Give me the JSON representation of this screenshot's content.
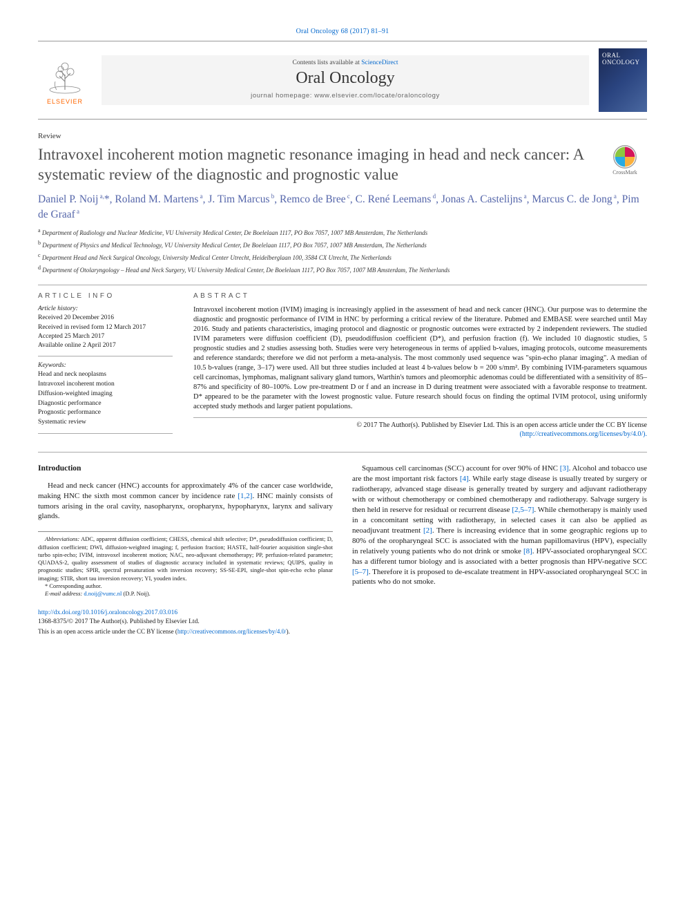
{
  "colors": {
    "link": "#0066cc",
    "author": "#5566aa",
    "title_gray": "#505050",
    "elsevier_orange": "#ff6600",
    "rule": "#999999",
    "bg_masthead": "#f4f4f4"
  },
  "citation": "Oral Oncology 68 (2017) 81–91",
  "masthead": {
    "contents_prefix": "Contents lists available at ",
    "contents_link": "ScienceDirect",
    "journal": "Oral Oncology",
    "homepage": "journal homepage: www.elsevier.com/locate/oraloncology",
    "publisher": "ELSEVIER",
    "cover_text": "ORAL ONCOLOGY"
  },
  "article": {
    "type": "Review",
    "title": "Intravoxel incoherent motion magnetic resonance imaging in head and neck cancer: A systematic review of the diagnostic and prognostic value",
    "crossmark": "CrossMark"
  },
  "authors_html": "Daniel P. Noij<sup> a,</sup>*, Roland M. Martens<sup> a</sup>, J. Tim Marcus<sup> b</sup>, Remco de Bree<sup> c</sup>, C. René Leemans<sup> d</sup>, Jonas A. Castelijns<sup> a</sup>, Marcus C. de Jong<sup> a</sup>, Pim de Graaf<sup> a</sup>",
  "affiliations": [
    "a|Department of Radiology and Nuclear Medicine, VU University Medical Center, De Boelelaan 1117, PO Box 7057, 1007 MB Amsterdam, The Netherlands",
    "b|Department of Physics and Medical Technology, VU University Medical Center, De Boelelaan 1117, PO Box 7057, 1007 MB Amsterdam, The Netherlands",
    "c|Department Head and Neck Surgical Oncology, University Medical Center Utrecht, Heidelberglaan 100, 3584 CX Utrecht, The Netherlands",
    "d|Department of Otolaryngology – Head and Neck Surgery, VU University Medical Center, De Boelelaan 1117, PO Box 7057, 1007 MB Amsterdam, The Netherlands"
  ],
  "info": {
    "head": "article info",
    "history_label": "Article history:",
    "history": [
      "Received 20 December 2016",
      "Received in revised form 12 March 2017",
      "Accepted 25 March 2017",
      "Available online 2 April 2017"
    ],
    "keywords_label": "Keywords:",
    "keywords": [
      "Head and neck neoplasms",
      "Intravoxel incoherent motion",
      "Diffusion-weighted imaging",
      "Diagnostic performance",
      "Prognostic performance",
      "Systematic review"
    ]
  },
  "abstract": {
    "head": "abstract",
    "body": "Intravoxel incoherent motion (IVIM) imaging is increasingly applied in the assessment of head and neck cancer (HNC). Our purpose was to determine the diagnostic and prognostic performance of IVIM in HNC by performing a critical review of the literature. Pubmed and EMBASE were searched until May 2016. Study and patients characteristics, imaging protocol and diagnostic or prognostic outcomes were extracted by 2 independent reviewers. The studied IVIM parameters were diffusion coefficient (D), pseudodiffusion coefficient (D*), and perfusion fraction (f). We included 10 diagnostic studies, 5 prognostic studies and 2 studies assessing both. Studies were very heterogeneous in terms of applied b-values, imaging protocols, outcome measurements and reference standards; therefore we did not perform a meta-analysis. The most commonly used sequence was \"spin-echo planar imaging\". A median of 10.5 b-values (range, 3–17) were used. All but three studies included at least 4 b-values below b = 200 s/mm². By combining IVIM-parameters squamous cell carcinomas, lymphomas, malignant salivary gland tumors, Warthin's tumors and pleomorphic adenomas could be differentiated with a sensitivity of 85–87% and specificity of 80–100%. Low pre-treatment D or f and an increase in D during treatment were associated with a favorable response to treatment. D* appeared to be the parameter with the lowest prognostic value. Future research should focus on finding the optimal IVIM protocol, using uniformly accepted study methods and larger patient populations.",
    "copyright": "© 2017 The Author(s). Published by Elsevier Ltd. This is an open access article under the CC BY license",
    "license_url": "(http://creativecommons.org/licenses/by/4.0/)."
  },
  "body": {
    "intro_head": "Introduction",
    "para1": "Head and neck cancer (HNC) accounts for approximately 4% of the cancer case worldwide, making HNC the sixth most common cancer by incidence rate [1,2]. HNC mainly consists of tumors arising in the oral cavity, nasopharynx, oropharynx, hypopharynx, larynx and salivary glands.",
    "para2": "Squamous cell carcinomas (SCC) account for over 90% of HNC [3]. Alcohol and tobacco use are the most important risk factors [4]. While early stage disease is usually treated by surgery or radiotherapy, advanced stage disease is generally treated by surgery and adjuvant radiotherapy with or without chemotherapy or combined chemotherapy and radiotherapy. Salvage surgery is then held in reserve for residual or recurrent disease [2,5–7]. While chemotherapy is mainly used in a concomitant setting with radiotherapy, in selected cases it can also be applied as neoadjuvant treatment [2]. There is increasing evidence that in some geographic regions up to 80% of the oropharyngeal SCC is associated with the human papillomavirus (HPV), especially in relatively young patients who do not drink or smoke [8]. HPV-associated oropharyngeal SCC has a different tumor biology and is associated with a better prognosis than HPV-negative SCC [5–7]. Therefore it is proposed to de-escalate treatment in HPV-associated oropharyngeal SCC in patients who do not smoke."
  },
  "footnotes": {
    "abbrev_label": "Abbreviations:",
    "abbrev": " ADC, apparent diffusion coefficient; CHESS, chemical shift selective; D*, pseudodiffusion coefficient; D, diffusion coefficient; DWI, diffusion-weighted imaging; f, perfusion fraction; HASTE, half-fourier acquisition single-shot turbo spin-echo; IVIM, intravoxel incoherent motion; NAC, neo-adjuvant chemotherapy; PP, perfusion-related parameter; QUADAS-2, quality assessment of studies of diagnostic accuracy included in systematic reviews; QUIPS, quality in prognostic studies; SPIR, spectral presaturation with inversion recovery; SS-SE-EPI, single-shot spin-echo echo planar imaging; STIR, short tau inversion recovery; YI, youden index.",
    "corr": "* Corresponding author.",
    "email_label": "E-mail address:",
    "email": "d.noij@vumc.nl",
    "email_suffix": " (D.P. Noij)."
  },
  "footer": {
    "doi": "http://dx.doi.org/10.1016/j.oraloncology.2017.03.016",
    "issn_line": "1368-8375/© 2017 The Author(s). Published by Elsevier Ltd.",
    "license": "This is an open access article under the CC BY license (",
    "license_url": "http://creativecommons.org/licenses/by/4.0/",
    "license_close": ")."
  }
}
